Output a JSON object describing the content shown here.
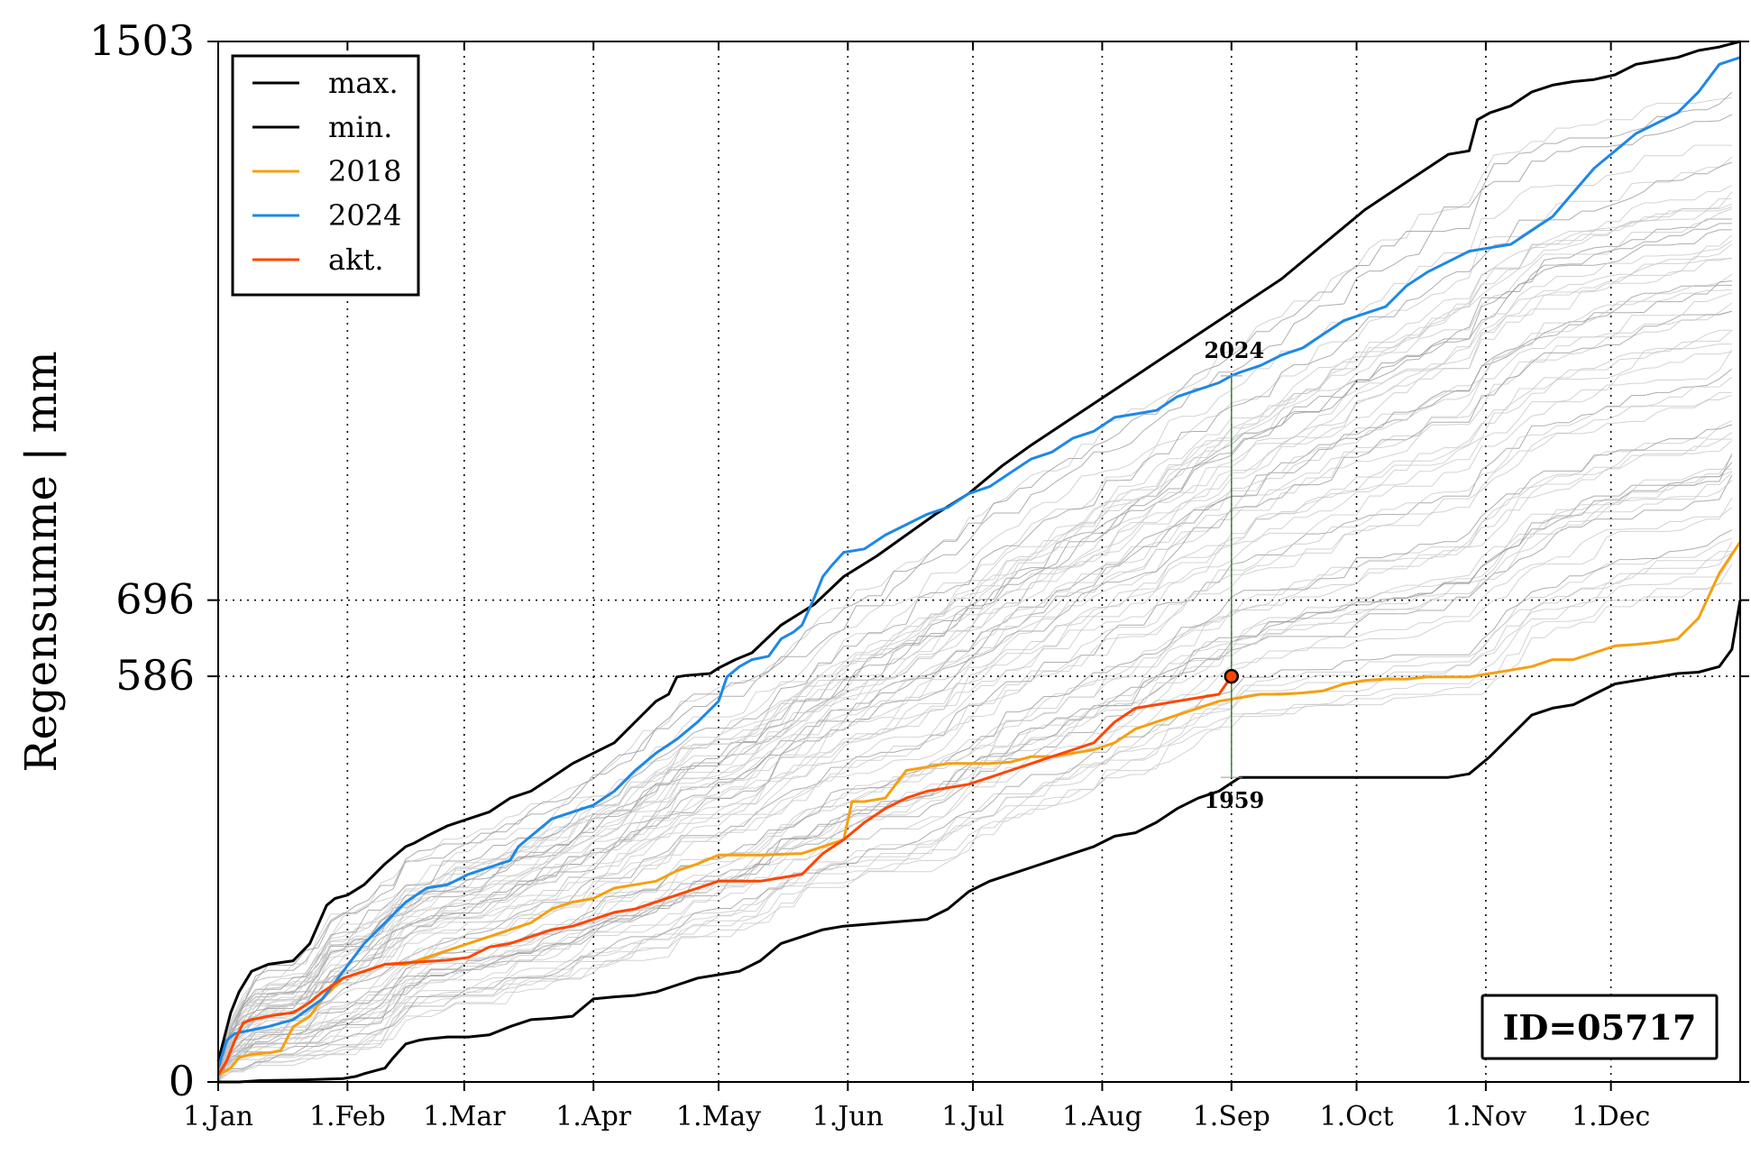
{
  "chart_data": {
    "type": "line",
    "ylabel": "Regensumme | mm",
    "xlabel": "",
    "title": "",
    "ylim": [
      0,
      1503
    ],
    "xlim_day": [
      0,
      365
    ],
    "x_ticks": [
      {
        "label": "1.Jan",
        "day": 0
      },
      {
        "label": "1.Feb",
        "day": 31
      },
      {
        "label": "1.Mar",
        "day": 59
      },
      {
        "label": "1.Apr",
        "day": 90
      },
      {
        "label": "1.May",
        "day": 120
      },
      {
        "label": "1.Jun",
        "day": 151
      },
      {
        "label": "1.Jul",
        "day": 181
      },
      {
        "label": "1.Aug",
        "day": 212
      },
      {
        "label": "1.Sep",
        "day": 243
      },
      {
        "label": "1.Oct",
        "day": 273
      },
      {
        "label": "1.Nov",
        "day": 304
      },
      {
        "label": "1.Dec",
        "day": 334
      }
    ],
    "y_ticks": [
      {
        "label": "0",
        "value": 0
      },
      {
        "label": "586",
        "value": 586
      },
      {
        "label": "696",
        "value": 696
      },
      {
        "label": "1503",
        "value": 1503
      }
    ],
    "legend_position": "top-left",
    "legend": [
      {
        "label": "max.",
        "color": "#000000"
      },
      {
        "label": "min.",
        "color": "#000000"
      },
      {
        "label": "2018",
        "color": "#f5a010"
      },
      {
        "label": "2024",
        "color": "#1e88e5"
      },
      {
        "label": "akt.",
        "color": "#ff4500"
      }
    ],
    "series": [
      {
        "name": "max.",
        "color": "#000000",
        "x": [
          0,
          3,
          5,
          8,
          12,
          18,
          22,
          26,
          28,
          31,
          35,
          40,
          45,
          47,
          50,
          55,
          60,
          65,
          70,
          75,
          80,
          85,
          90,
          95,
          100,
          105,
          108,
          110,
          112,
          118,
          120,
          124,
          128,
          135,
          143,
          150,
          158,
          165,
          172,
          180,
          188,
          195,
          205,
          215,
          225,
          235,
          245,
          255,
          265,
          275,
          285,
          295,
          300,
          302,
          305,
          310,
          315,
          320,
          325,
          330,
          335,
          340,
          345,
          350,
          355,
          360,
          365
        ],
        "y": [
          30,
          100,
          130,
          160,
          170,
          175,
          200,
          255,
          265,
          270,
          285,
          315,
          340,
          345,
          355,
          370,
          380,
          390,
          410,
          420,
          440,
          460,
          475,
          490,
          520,
          550,
          560,
          585,
          587,
          590,
          598,
          610,
          620,
          660,
          690,
          730,
          760,
          790,
          820,
          850,
          890,
          920,
          960,
          1000,
          1040,
          1080,
          1120,
          1160,
          1210,
          1260,
          1300,
          1340,
          1345,
          1390,
          1400,
          1410,
          1430,
          1440,
          1445,
          1448,
          1455,
          1470,
          1475,
          1480,
          1490,
          1495,
          1503
        ]
      },
      {
        "name": "min.",
        "color": "#000000",
        "x": [
          0,
          5,
          10,
          20,
          30,
          33,
          35,
          40,
          42,
          45,
          48,
          50,
          55,
          60,
          65,
          70,
          75,
          80,
          85,
          88,
          90,
          95,
          100,
          105,
          110,
          115,
          120,
          125,
          130,
          135,
          140,
          145,
          150,
          160,
          170,
          175,
          180,
          185,
          190,
          195,
          200,
          205,
          210,
          215,
          220,
          225,
          230,
          235,
          240,
          245,
          250,
          255,
          260,
          265,
          270,
          275,
          280,
          285,
          290,
          295,
          300,
          305,
          310,
          315,
          320,
          325,
          330,
          335,
          340,
          345,
          350,
          355,
          360,
          363,
          365
        ],
        "y": [
          0,
          0,
          2,
          3,
          5,
          8,
          12,
          20,
          35,
          55,
          60,
          62,
          65,
          65,
          68,
          80,
          90,
          92,
          95,
          110,
          120,
          123,
          125,
          130,
          140,
          150,
          155,
          160,
          175,
          200,
          210,
          220,
          225,
          230,
          235,
          250,
          275,
          290,
          300,
          310,
          320,
          330,
          340,
          355,
          360,
          375,
          395,
          410,
          420,
          440,
          440,
          440,
          440,
          440,
          440,
          440,
          440,
          440,
          440,
          440,
          445,
          470,
          500,
          530,
          540,
          545,
          560,
          575,
          580,
          585,
          590,
          592,
          600,
          625,
          696
        ]
      },
      {
        "name": "2018",
        "color": "#f5a010",
        "x": [
          0,
          3,
          5,
          8,
          12,
          15,
          18,
          22,
          25,
          30,
          35,
          40,
          45,
          50,
          55,
          60,
          65,
          70,
          75,
          80,
          85,
          90,
          95,
          100,
          105,
          110,
          115,
          120,
          130,
          140,
          145,
          150,
          152,
          155,
          160,
          165,
          170,
          175,
          180,
          185,
          190,
          195,
          200,
          205,
          210,
          215,
          220,
          225,
          230,
          235,
          240,
          245,
          250,
          255,
          260,
          265,
          270,
          275,
          280,
          285,
          290,
          295,
          300,
          305,
          310,
          315,
          320,
          325,
          330,
          335,
          340,
          345,
          350,
          355,
          360,
          365
        ],
        "y": [
          10,
          20,
          35,
          40,
          42,
          45,
          80,
          95,
          120,
          150,
          160,
          170,
          170,
          180,
          190,
          200,
          210,
          220,
          230,
          250,
          260,
          265,
          280,
          285,
          290,
          305,
          315,
          328,
          328,
          330,
          340,
          350,
          405,
          405,
          410,
          450,
          455,
          460,
          460,
          460,
          462,
          470,
          470,
          475,
          480,
          490,
          510,
          520,
          530,
          540,
          550,
          555,
          560,
          560,
          562,
          565,
          575,
          580,
          582,
          582,
          585,
          585,
          585,
          590,
          595,
          600,
          610,
          610,
          620,
          630,
          632,
          635,
          640,
          670,
          735,
          780
        ]
      },
      {
        "name": "2024",
        "color": "#1e88e5",
        "x": [
          0,
          2,
          4,
          8,
          12,
          18,
          25,
          30,
          35,
          40,
          45,
          50,
          55,
          60,
          65,
          70,
          72,
          75,
          80,
          85,
          90,
          95,
          100,
          105,
          110,
          115,
          120,
          122,
          125,
          128,
          132,
          135,
          138,
          140,
          143,
          145,
          147,
          150,
          155,
          160,
          165,
          170,
          175,
          180,
          185,
          190,
          195,
          200,
          205,
          210,
          215,
          220,
          225,
          230,
          235,
          240,
          243,
          245,
          250,
          255,
          260,
          265,
          270,
          275,
          280,
          285,
          290,
          295,
          300,
          305,
          310,
          315,
          320,
          325,
          330,
          335,
          340,
          345,
          350,
          355,
          360,
          365
        ],
        "y": [
          20,
          60,
          70,
          75,
          80,
          90,
          120,
          160,
          200,
          230,
          260,
          280,
          285,
          300,
          310,
          320,
          340,
          355,
          380,
          390,
          400,
          420,
          450,
          475,
          495,
          520,
          550,
          585,
          600,
          610,
          615,
          640,
          650,
          660,
          700,
          730,
          745,
          765,
          770,
          790,
          805,
          820,
          830,
          850,
          860,
          880,
          900,
          910,
          930,
          940,
          960,
          965,
          970,
          990,
          1000,
          1010,
          1020,
          1025,
          1035,
          1050,
          1060,
          1080,
          1100,
          1110,
          1120,
          1150,
          1170,
          1185,
          1200,
          1205,
          1210,
          1230,
          1250,
          1285,
          1320,
          1345,
          1370,
          1385,
          1400,
          1430,
          1470,
          1480
        ]
      },
      {
        "name": "akt.",
        "color": "#ff4500",
        "x": [
          0,
          2,
          4,
          6,
          8,
          12,
          15,
          18,
          22,
          25,
          30,
          35,
          40,
          45,
          50,
          55,
          60,
          65,
          70,
          75,
          80,
          85,
          90,
          95,
          100,
          110,
          115,
          120,
          125,
          130,
          135,
          140,
          145,
          150,
          155,
          160,
          165,
          170,
          175,
          180,
          185,
          190,
          195,
          200,
          205,
          210,
          215,
          220,
          225,
          230,
          235,
          240,
          243
        ],
        "y": [
          10,
          30,
          60,
          85,
          90,
          95,
          98,
          100,
          115,
          130,
          150,
          160,
          170,
          172,
          174,
          176,
          180,
          195,
          200,
          210,
          220,
          225,
          235,
          245,
          250,
          270,
          280,
          290,
          290,
          290,
          295,
          300,
          330,
          350,
          375,
          395,
          410,
          420,
          425,
          430,
          440,
          450,
          460,
          470,
          480,
          490,
          520,
          540,
          545,
          550,
          555,
          560,
          586
        ]
      }
    ],
    "markers": [
      {
        "label": "2024",
        "day": 243,
        "value": 1020
      },
      {
        "label": "1959",
        "day": 243,
        "value": 440
      }
    ],
    "current_point": {
      "day": 243,
      "value": 586
    },
    "id_box": "ID=05717"
  }
}
